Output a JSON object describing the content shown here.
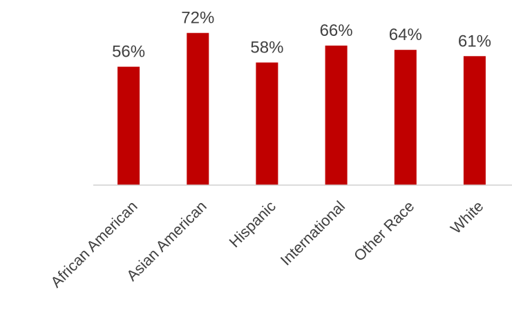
{
  "chart_data": {
    "type": "bar",
    "categories": [
      "African American",
      "Asian American",
      "Hispanic",
      "International",
      "Other Race",
      "White"
    ],
    "values": [
      56,
      72,
      58,
      66,
      64,
      61
    ],
    "value_suffix": "%",
    "title": "",
    "xlabel": "",
    "ylabel": "",
    "ylim": [
      0,
      80
    ],
    "grid": false,
    "legend": "none",
    "bar_color": "#c00000"
  }
}
